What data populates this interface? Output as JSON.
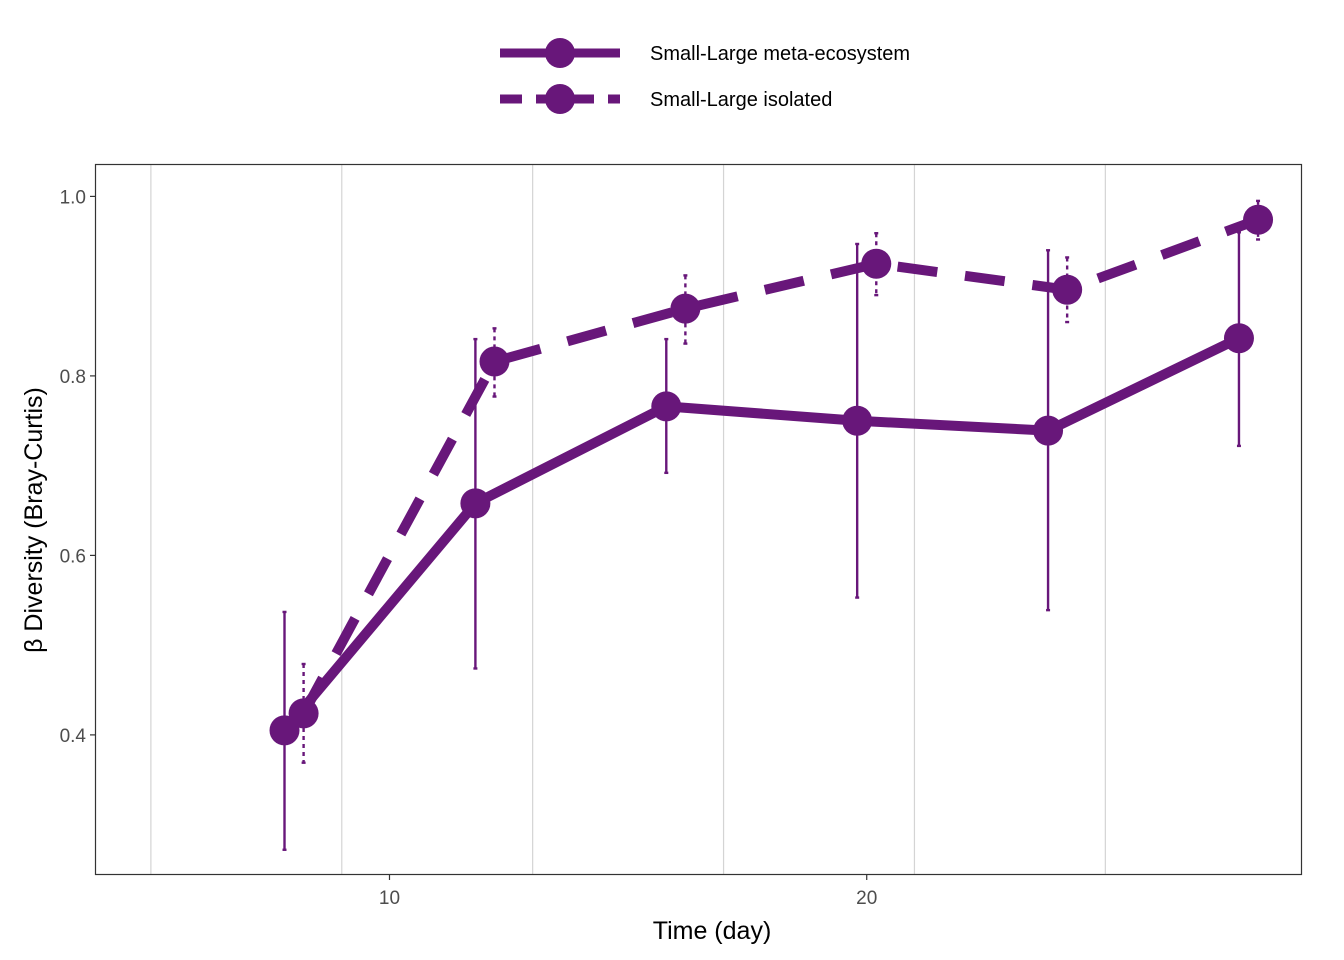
{
  "chart_data": {
    "type": "line",
    "title": "",
    "xlabel": "Time (day)",
    "ylabel": "β Diversity (Bray-Curtis)",
    "xlim": [
      3.85,
      29.1
    ],
    "ylim": [
      0.245,
      1.035
    ],
    "x_ticks": [
      10,
      20
    ],
    "x_tick_labels": [
      "10",
      "20"
    ],
    "y_ticks": [
      0.4,
      0.6,
      0.8,
      1.0
    ],
    "y_tick_labels": [
      "0.4",
      "0.6",
      "0.8",
      "1.0"
    ],
    "x_minor_gridlines": [
      5,
      9,
      13,
      17,
      21,
      25
    ],
    "grid": true,
    "legend_position": "top",
    "color": "#68177a",
    "series": [
      {
        "name": "Small-Large meta-ecosystem",
        "linestyle": "solid",
        "x": [
          7.8,
          11.8,
          15.8,
          19.8,
          23.8,
          27.8
        ],
        "y": [
          0.405,
          0.658,
          0.766,
          0.75,
          0.739,
          0.842
        ],
        "err_low": [
          0.272,
          0.474,
          0.692,
          0.553,
          0.539,
          0.722
        ],
        "err_high": [
          0.537,
          0.841,
          0.841,
          0.947,
          0.94,
          0.96
        ]
      },
      {
        "name": "Small-Large isolated",
        "linestyle": "dashed",
        "x": [
          8.2,
          12.2,
          16.2,
          20.2,
          24.2,
          28.2
        ],
        "y": [
          0.424,
          0.816,
          0.875,
          0.925,
          0.896,
          0.974
        ],
        "err_low": [
          0.369,
          0.777,
          0.836,
          0.89,
          0.86,
          0.952
        ],
        "err_high": [
          0.479,
          0.853,
          0.912,
          0.959,
          0.932,
          0.995
        ]
      }
    ]
  }
}
